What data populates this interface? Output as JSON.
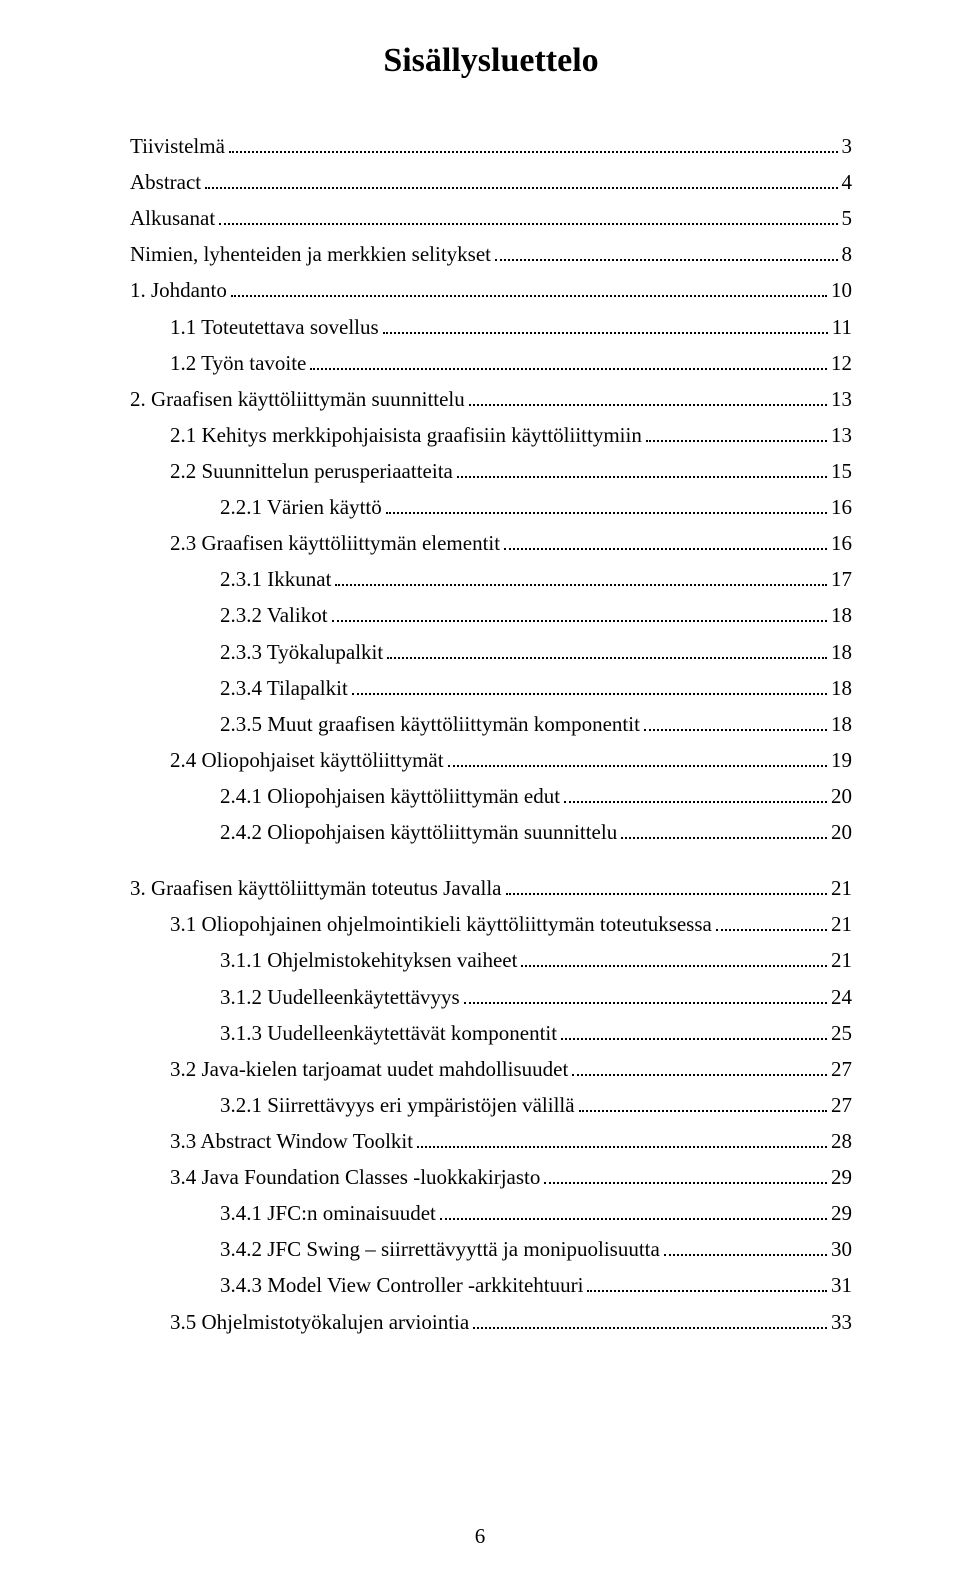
{
  "title": "Sisällysluettelo",
  "page_number": "6",
  "entries": [
    {
      "label": "Tiivistelmä",
      "page": "3",
      "indent": 0,
      "gap": false
    },
    {
      "label": "Abstract",
      "page": "4",
      "indent": 0,
      "gap": false
    },
    {
      "label": "Alkusanat",
      "page": "5",
      "indent": 0,
      "gap": false
    },
    {
      "label": "Nimien, lyhenteiden ja merkkien selitykset",
      "page": "8",
      "indent": 0,
      "gap": false
    },
    {
      "label": "1.  Johdanto",
      "page": "10",
      "indent": 0,
      "gap": false
    },
    {
      "label": "1.1  Toteutettava sovellus",
      "page": "11",
      "indent": 1,
      "gap": false
    },
    {
      "label": "1.2  Työn tavoite",
      "page": "12",
      "indent": 1,
      "gap": false
    },
    {
      "label": "2.  Graafisen käyttöliittymän suunnittelu",
      "page": "13",
      "indent": 0,
      "gap": false
    },
    {
      "label": "2.1  Kehitys merkkipohjaisista graafisiin käyttöliittymiin",
      "page": "13",
      "indent": 1,
      "gap": false
    },
    {
      "label": "2.2  Suunnittelun perusperiaatteita",
      "page": "15",
      "indent": 1,
      "gap": false
    },
    {
      "label": "2.2.1  Värien käyttö",
      "page": "16",
      "indent": 2,
      "gap": false
    },
    {
      "label": "2.3  Graafisen käyttöliittymän elementit",
      "page": "16",
      "indent": 1,
      "gap": false
    },
    {
      "label": "2.3.1  Ikkunat",
      "page": "17",
      "indent": 2,
      "gap": false
    },
    {
      "label": "2.3.2  Valikot",
      "page": "18",
      "indent": 2,
      "gap": false
    },
    {
      "label": "2.3.3  Työkalupalkit",
      "page": "18",
      "indent": 2,
      "gap": false
    },
    {
      "label": "2.3.4  Tilapalkit",
      "page": "18",
      "indent": 2,
      "gap": false
    },
    {
      "label": "2.3.5  Muut graafisen käyttöliittymän  komponentit",
      "page": "18",
      "indent": 2,
      "gap": false
    },
    {
      "label": "2.4  Oliopohjaiset käyttöliittymät",
      "page": "19",
      "indent": 1,
      "gap": false
    },
    {
      "label": "2.4.1  Oliopohjaisen käyttöliittymän edut",
      "page": "20",
      "indent": 2,
      "gap": false
    },
    {
      "label": "2.4.2  Oliopohjaisen käyttöliittymän suunnittelu",
      "page": "20",
      "indent": 2,
      "gap": false
    },
    {
      "label": "3.  Graafisen käyttöliittymän toteutus Javalla",
      "page": "21",
      "indent": 0,
      "gap": true
    },
    {
      "label": "3.1  Oliopohjainen ohjelmointikieli käyttöliittymän toteutuksessa",
      "page": "21",
      "indent": 1,
      "gap": false
    },
    {
      "label": "3.1.1  Ohjelmistokehityksen vaiheet",
      "page": "21",
      "indent": 2,
      "gap": false
    },
    {
      "label": "3.1.2  Uudelleenkäytettävyys",
      "page": "24",
      "indent": 2,
      "gap": false
    },
    {
      "label": "3.1.3  Uudelleenkäytettävät komponentit",
      "page": "25",
      "indent": 2,
      "gap": false
    },
    {
      "label": "3.2  Java-kielen tarjoamat uudet mahdollisuudet",
      "page": "27",
      "indent": 1,
      "gap": false
    },
    {
      "label": "3.2.1  Siirrettävyys eri ympäristöjen välillä",
      "page": "27",
      "indent": 2,
      "gap": false
    },
    {
      "label": "3.3  Abstract Window Toolkit",
      "page": "28",
      "indent": 1,
      "gap": false
    },
    {
      "label": "3.4  Java Foundation Classes -luokkakirjasto",
      "page": "29",
      "indent": 1,
      "gap": false
    },
    {
      "label": "3.4.1  JFC:n ominaisuudet",
      "page": "29",
      "indent": 2,
      "gap": false
    },
    {
      "label": "3.4.2  JFC Swing – siirrettävyyttä ja monipuolisuutta",
      "page": "30",
      "indent": 2,
      "gap": false
    },
    {
      "label": "3.4.3  Model View Controller -arkkitehtuuri",
      "page": "31",
      "indent": 2,
      "gap": false
    },
    {
      "label": "3.5  Ohjelmistotyökalujen arviointia",
      "page": "33",
      "indent": 1,
      "gap": false
    }
  ]
}
